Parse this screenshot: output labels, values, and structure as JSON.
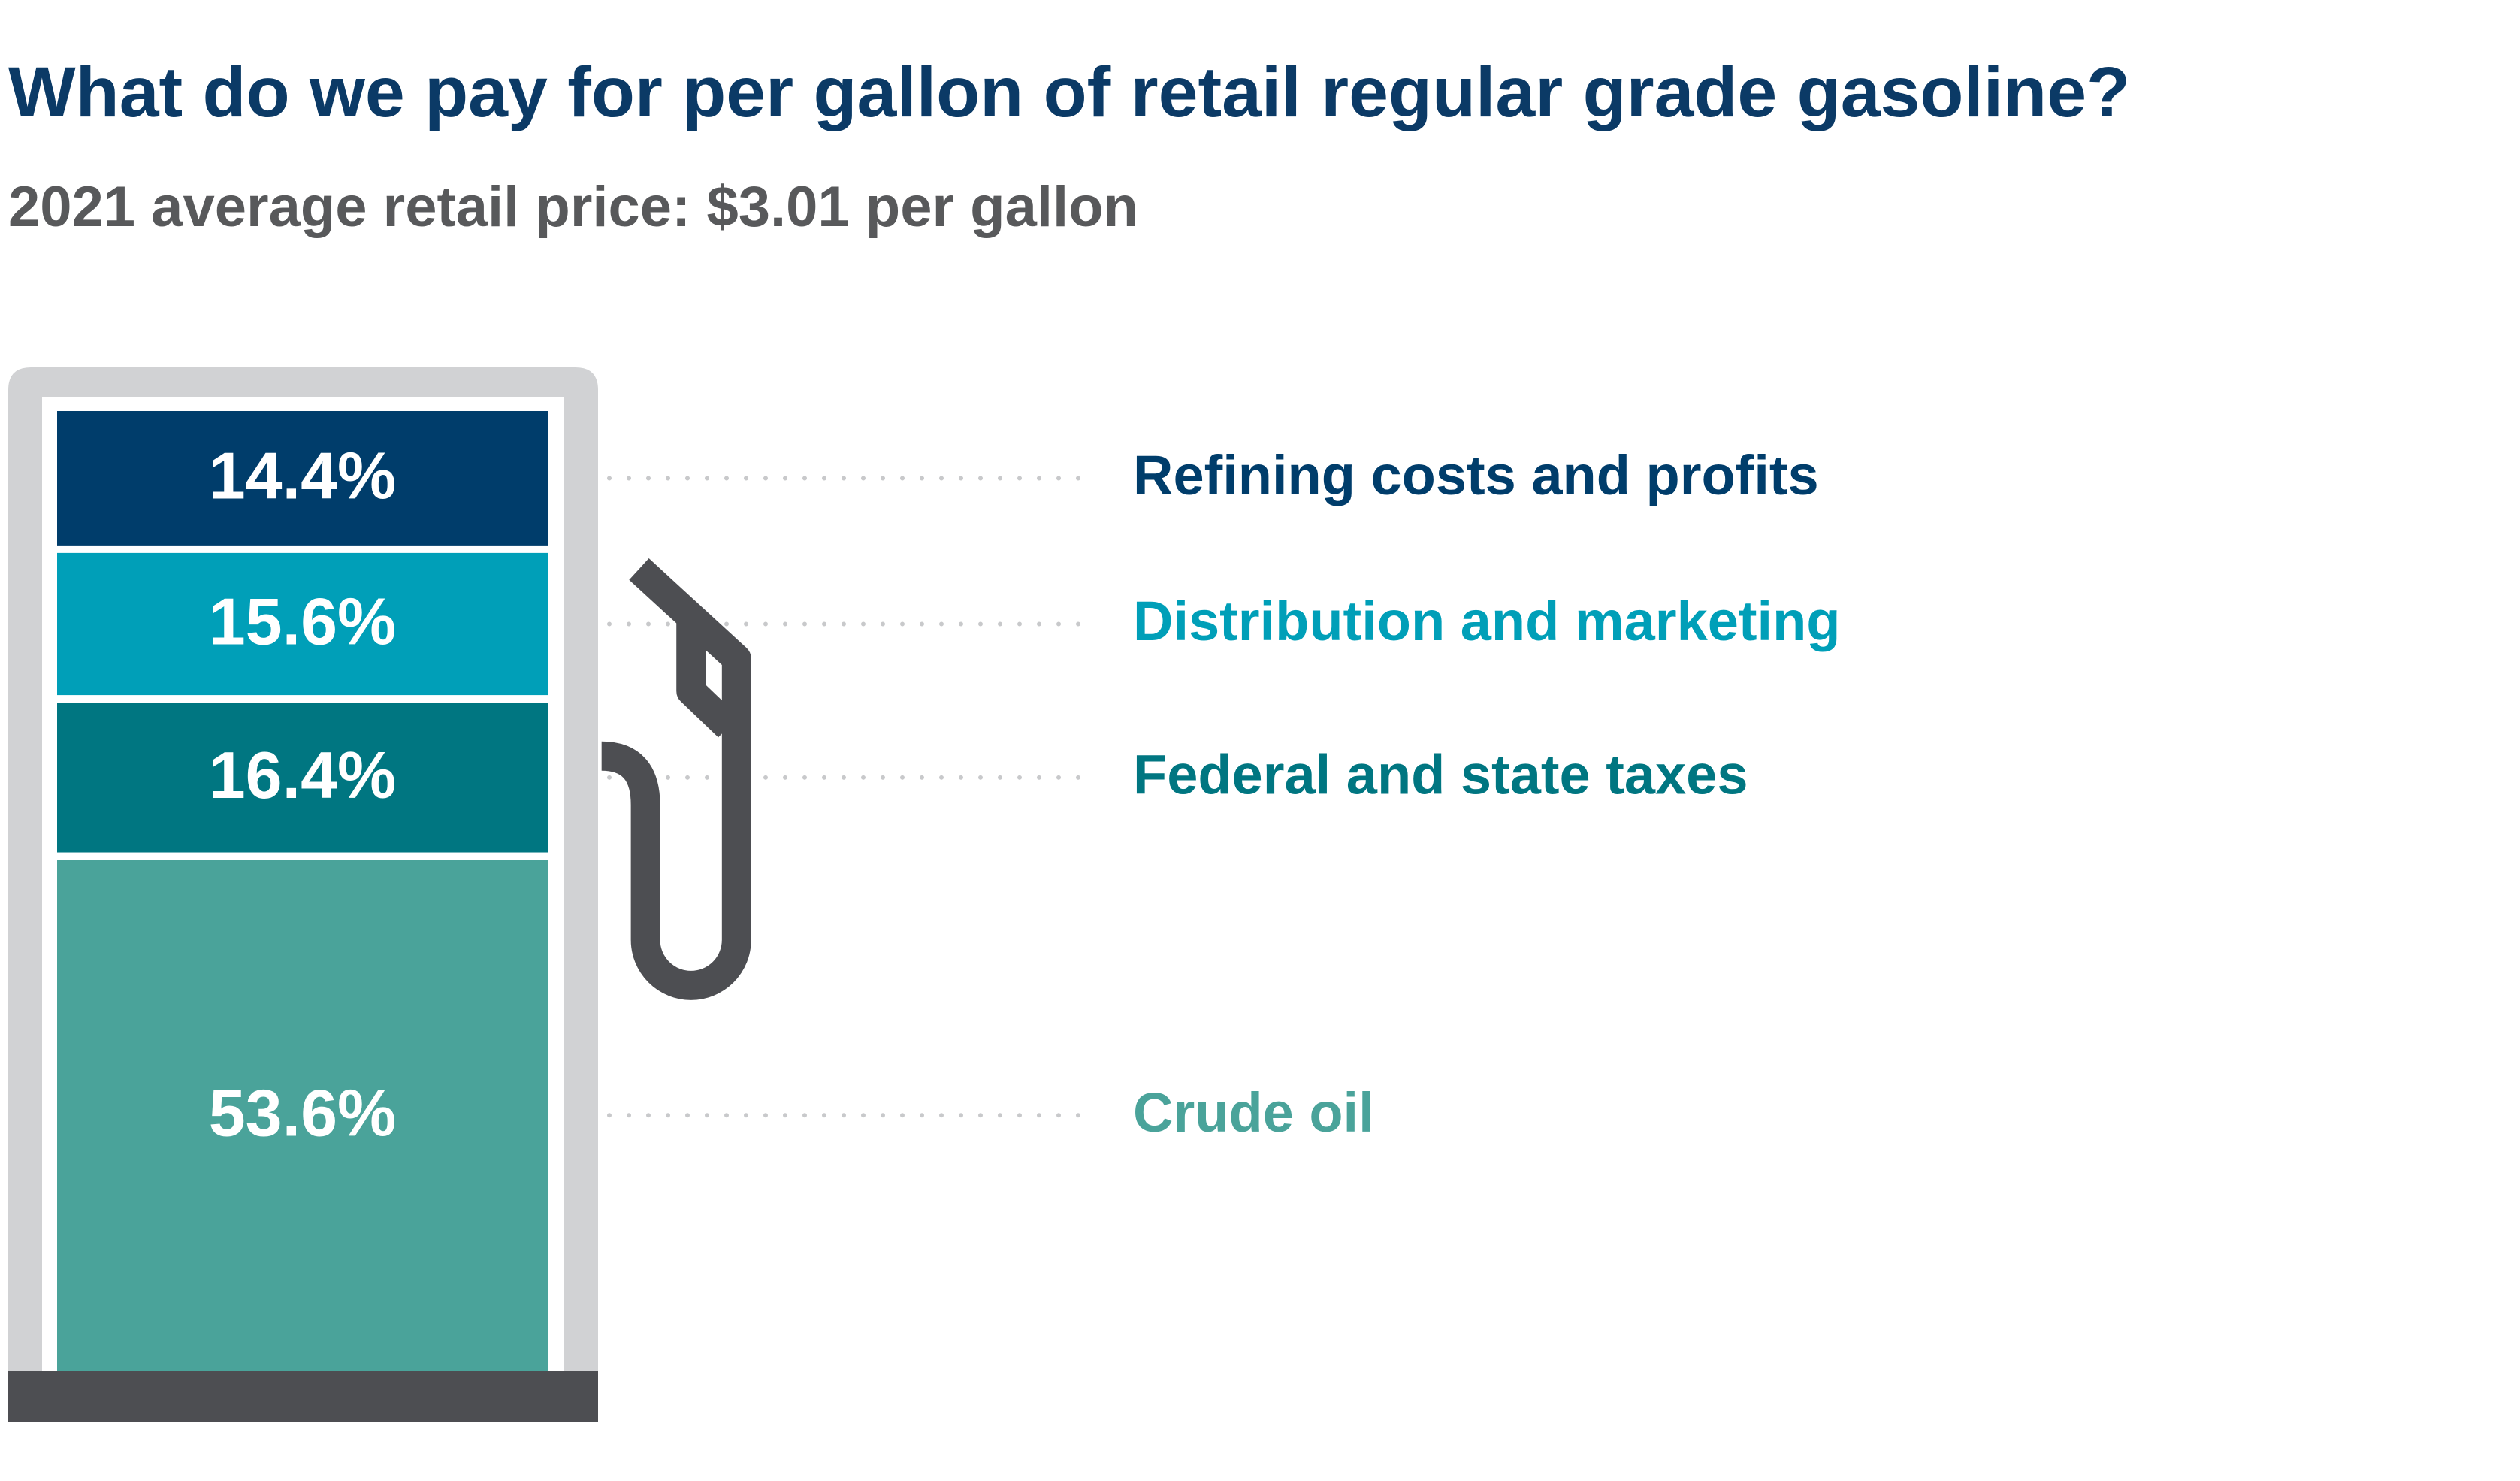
{
  "chart_data": {
    "type": "bar",
    "stacked": true,
    "title": "What do we pay for per gallon of retail regular grade gasoline?",
    "subtitle": "2021 average retail price: $3.01 per gallon",
    "series": [
      {
        "name": "Crude oil",
        "color": "#4aa39a",
        "values": [
          53.6
        ],
        "value_labels": [
          "53.6%"
        ]
      },
      {
        "name": "Federal and state taxes",
        "color": "#007681",
        "values": [
          16.4
        ],
        "value_labels": [
          "16.4%"
        ]
      },
      {
        "name": "Distribution and marketing",
        "color": "#009fb8",
        "values": [
          15.6
        ],
        "value_labels": [
          "15.6%"
        ]
      },
      {
        "name": "Refining costs and profits",
        "color": "#003d6b",
        "values": [
          14.4
        ],
        "value_labels": [
          "14.4%"
        ]
      }
    ]
  }
}
